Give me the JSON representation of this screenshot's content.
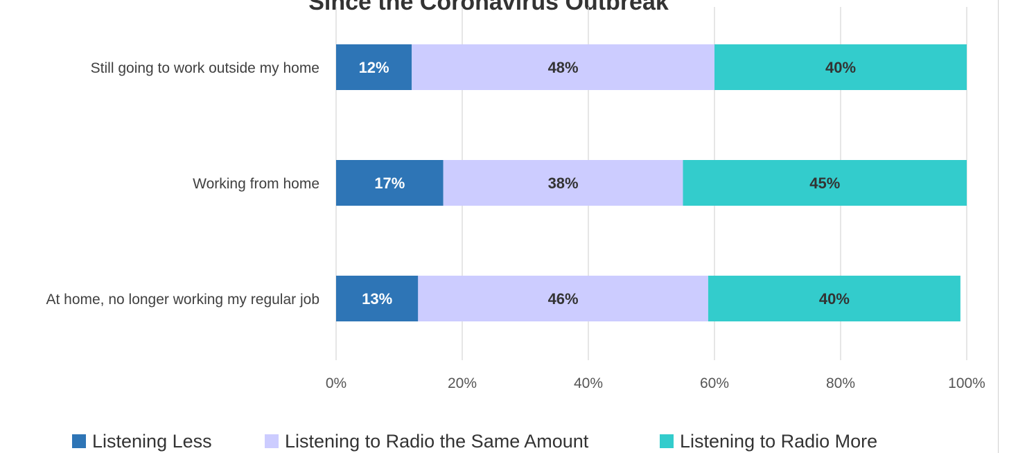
{
  "chart_data": {
    "type": "bar",
    "orientation": "horizontal",
    "stacked": true,
    "title": "Since the Coronavirus Outbreak",
    "categories": [
      "Still going to work outside my home",
      "Working from home",
      "At home, no longer working my regular job"
    ],
    "series": [
      {
        "name": "Listening Less",
        "values": [
          12,
          17,
          13
        ],
        "labels": [
          "12%",
          "17%",
          "13%"
        ],
        "color": "#2e75b6",
        "label_color": "#ffffff"
      },
      {
        "name": "Listening to Radio the Same Amount",
        "values": [
          48,
          38,
          46
        ],
        "labels": [
          "48%",
          "38%",
          "46%"
        ],
        "color": "#ccccff",
        "label_color": "#333333"
      },
      {
        "name": "Listening to Radio More",
        "values": [
          40,
          45,
          40
        ],
        "labels": [
          "40%",
          "45%",
          "40%"
        ],
        "color": "#33cccc",
        "label_color": "#333333"
      }
    ],
    "xlim": [
      0,
      100
    ],
    "xticks": [
      "0%",
      "20%",
      "40%",
      "60%",
      "80%",
      "100%"
    ],
    "grid": true,
    "legend_position": "bottom"
  }
}
